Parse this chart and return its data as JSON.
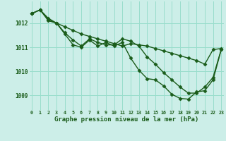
{
  "title": "Graphe pression niveau de la mer (hPa)",
  "bg_color": "#cceee8",
  "grid_color": "#99ddcc",
  "line_color": "#1a5c1a",
  "xlim": [
    -0.3,
    23.3
  ],
  "ylim": [
    1008.4,
    1012.9
  ],
  "yticks": [
    1009,
    1010,
    1011,
    1012
  ],
  "xtick_labels": [
    "0",
    "1",
    "2",
    "3",
    "4",
    "5",
    "6",
    "7",
    "8",
    "9",
    "10",
    "11",
    "12",
    "13",
    "14",
    "15",
    "16",
    "17",
    "18",
    "19",
    "20",
    "21",
    "22",
    "23"
  ],
  "series": [
    {
      "x": [
        0,
        1,
        2,
        3,
        4,
        5,
        6,
        7,
        8,
        9,
        10,
        11,
        12,
        13,
        14,
        15,
        16,
        17,
        18,
        19,
        20,
        21,
        22,
        23
      ],
      "y": [
        1012.4,
        1012.55,
        1012.2,
        1012.0,
        1011.85,
        1011.7,
        1011.55,
        1011.45,
        1011.35,
        1011.25,
        1011.15,
        1011.05,
        1011.15,
        1011.1,
        1011.05,
        1010.95,
        1010.85,
        1010.75,
        1010.65,
        1010.55,
        1010.45,
        1010.3,
        1010.9,
        1010.95
      ],
      "marker": "D",
      "markersize": 2.5,
      "linewidth": 1.0
    },
    {
      "x": [
        0,
        1,
        2,
        3,
        4,
        5,
        6,
        7,
        8,
        9,
        10,
        11,
        12,
        13,
        14,
        15,
        16,
        17,
        18,
        19,
        20,
        21,
        22,
        23
      ],
      "y": [
        1012.4,
        1012.55,
        1012.15,
        1012.0,
        1011.6,
        1011.3,
        1011.05,
        1011.35,
        1011.2,
        1011.1,
        1011.1,
        1011.35,
        1011.25,
        1011.05,
        1010.6,
        1010.3,
        1009.95,
        1009.65,
        1009.35,
        1009.1,
        1009.1,
        1009.35,
        1009.75,
        1010.92
      ],
      "marker": "D",
      "markersize": 2.5,
      "linewidth": 1.0
    },
    {
      "x": [
        0,
        1,
        2,
        3,
        4,
        5,
        6,
        7,
        8,
        9,
        10,
        11,
        12,
        13,
        14,
        15,
        16,
        17,
        18,
        19,
        20,
        21,
        22,
        23
      ],
      "y": [
        1012.4,
        1012.55,
        1012.1,
        1012.0,
        1011.55,
        1011.1,
        1011.0,
        1011.3,
        1011.05,
        1011.2,
        1011.05,
        1011.2,
        1010.55,
        1010.05,
        1009.7,
        1009.65,
        1009.4,
        1009.05,
        1008.88,
        1008.85,
        1009.15,
        1009.2,
        1009.65,
        1010.9
      ],
      "marker": "D",
      "markersize": 2.5,
      "linewidth": 1.0
    }
  ]
}
